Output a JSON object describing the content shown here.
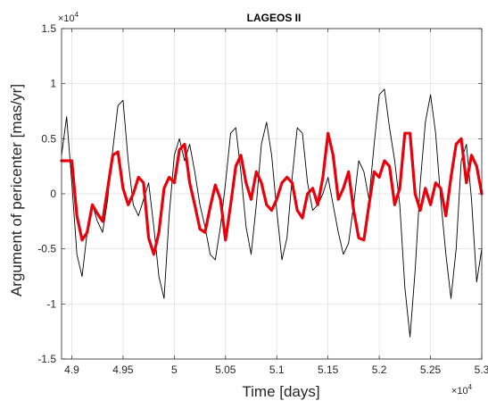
{
  "chart_data": {
    "type": "line",
    "title": "LAGEOS II",
    "xlabel": "Time [days]",
    "ylabel": "Argument of pericenter  [mas/yr]",
    "x_multiplier_base": "×10",
    "x_multiplier_exp": "4",
    "y_multiplier_base": "×10",
    "y_multiplier_exp": "4",
    "xlim": [
      4.89,
      5.3
    ],
    "ylim": [
      -1.5,
      1.5
    ],
    "x_unit_scale": 10000,
    "y_unit_scale": 10000,
    "x_ticks": [
      4.9,
      4.95,
      5.0,
      5.05,
      5.1,
      5.15,
      5.2,
      5.25,
      5.3
    ],
    "x_tick_labels": [
      "4.9",
      "4.95",
      "5",
      "5.05",
      "5.1",
      "5.15",
      "5.2",
      "5.25",
      "5.3"
    ],
    "y_ticks": [
      -1.5,
      -1,
      -0.5,
      0,
      0.5,
      1,
      1.5
    ],
    "y_tick_labels": [
      "-1.5",
      "-1",
      "-0.5",
      "0",
      "0.5",
      "1",
      "1.5"
    ],
    "grid": true,
    "series": [
      {
        "color": "#000000",
        "x": [
          4.89,
          4.895,
          4.9,
          4.905,
          4.91,
          4.915,
          4.92,
          4.925,
          4.93,
          4.935,
          4.94,
          4.945,
          4.95,
          4.955,
          4.96,
          4.965,
          4.97,
          4.975,
          4.98,
          4.985,
          4.99,
          4.995,
          5.0,
          5.005,
          5.01,
          5.015,
          5.02,
          5.025,
          5.03,
          5.035,
          5.04,
          5.045,
          5.05,
          5.055,
          5.06,
          5.065,
          5.07,
          5.075,
          5.08,
          5.085,
          5.09,
          5.095,
          5.1,
          5.105,
          5.11,
          5.115,
          5.12,
          5.125,
          5.13,
          5.135,
          5.14,
          5.145,
          5.15,
          5.155,
          5.16,
          5.165,
          5.17,
          5.175,
          5.18,
          5.185,
          5.19,
          5.195,
          5.2,
          5.205,
          5.21,
          5.215,
          5.22,
          5.225,
          5.23,
          5.235,
          5.24,
          5.245,
          5.25,
          5.255,
          5.26,
          5.265,
          5.27,
          5.275,
          5.28,
          5.285,
          5.29,
          5.295,
          5.3
        ],
        "y": [
          0.35,
          0.7,
          0.1,
          -0.55,
          -0.75,
          -0.35,
          -0.1,
          -0.25,
          -0.35,
          -0.05,
          0.4,
          0.8,
          0.85,
          0.3,
          -0.1,
          -0.2,
          -0.05,
          0.1,
          -0.3,
          -0.75,
          -0.95,
          -0.2,
          0.35,
          0.5,
          0.3,
          0.45,
          0.2,
          -0.1,
          -0.3,
          -0.55,
          -0.6,
          -0.3,
          0.1,
          0.55,
          0.6,
          0.2,
          -0.3,
          -0.55,
          -0.1,
          0.45,
          0.65,
          0.35,
          -0.15,
          -0.6,
          -0.4,
          0.15,
          0.6,
          0.55,
          0.1,
          -0.15,
          -0.1,
          0.0,
          0.15,
          -0.1,
          -0.35,
          -0.55,
          -0.45,
          -0.1,
          0.3,
          0.2,
          -0.05,
          0.45,
          0.9,
          0.95,
          0.6,
          0.3,
          -0.1,
          -0.85,
          -1.3,
          -0.7,
          0.1,
          0.65,
          0.9,
          0.55,
          -0.05,
          -0.55,
          -0.95,
          -0.5,
          0.3,
          0.45,
          -0.05,
          -0.8,
          -0.5
        ]
      },
      {
        "color": "#e8000b",
        "x": [
          4.89,
          4.9,
          4.905,
          4.91,
          4.915,
          4.92,
          4.925,
          4.93,
          4.935,
          4.94,
          4.945,
          4.95,
          4.955,
          4.96,
          4.965,
          4.97,
          4.975,
          4.98,
          4.985,
          4.99,
          4.995,
          5.0,
          5.005,
          5.01,
          5.015,
          5.02,
          5.025,
          5.03,
          5.035,
          5.04,
          5.045,
          5.05,
          5.055,
          5.06,
          5.065,
          5.07,
          5.075,
          5.08,
          5.085,
          5.09,
          5.095,
          5.1,
          5.105,
          5.11,
          5.115,
          5.12,
          5.125,
          5.13,
          5.135,
          5.14,
          5.145,
          5.15,
          5.155,
          5.16,
          5.165,
          5.17,
          5.175,
          5.18,
          5.185,
          5.19,
          5.195,
          5.2,
          5.205,
          5.21,
          5.215,
          5.22,
          5.225,
          5.23,
          5.235,
          5.24,
          5.245,
          5.25,
          5.255,
          5.26,
          5.265,
          5.27,
          5.275,
          5.28,
          5.285,
          5.29,
          5.295,
          5.3
        ],
        "y": [
          0.3,
          0.3,
          -0.2,
          -0.42,
          -0.35,
          -0.1,
          -0.18,
          -0.25,
          0.05,
          0.35,
          0.38,
          0.05,
          -0.1,
          0.0,
          0.15,
          0.1,
          -0.4,
          -0.55,
          -0.35,
          0.05,
          0.15,
          0.1,
          0.4,
          0.45,
          0.1,
          -0.1,
          -0.32,
          -0.35,
          -0.12,
          0.08,
          -0.05,
          -0.42,
          -0.1,
          0.25,
          0.35,
          0.1,
          -0.05,
          0.2,
          0.1,
          -0.1,
          -0.15,
          -0.05,
          0.1,
          0.15,
          0.1,
          -0.15,
          -0.22,
          0.0,
          0.05,
          -0.1,
          0.15,
          0.55,
          0.35,
          -0.05,
          0.05,
          0.2,
          -0.15,
          -0.4,
          -0.42,
          -0.1,
          0.2,
          0.15,
          0.3,
          0.25,
          -0.1,
          0.05,
          0.55,
          0.55,
          0.0,
          -0.15,
          0.05,
          -0.1,
          0.1,
          0.05,
          -0.2,
          0.15,
          0.45,
          0.5,
          0.1,
          0.35,
          0.25,
          0.0
        ]
      }
    ]
  }
}
